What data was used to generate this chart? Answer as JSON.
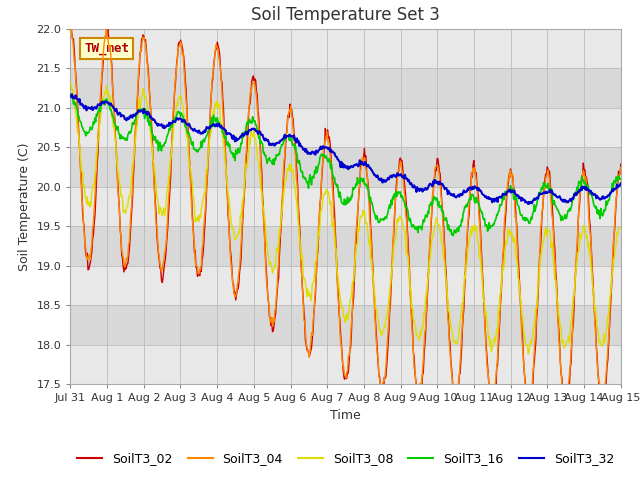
{
  "title": "Soil Temperature Set 3",
  "xlabel": "Time",
  "ylabel": "Soil Temperature (C)",
  "ylim": [
    17.5,
    22.0
  ],
  "series_names": [
    "SoilT3_02",
    "SoilT3_04",
    "SoilT3_08",
    "SoilT3_16",
    "SoilT3_32"
  ],
  "series_colors": [
    "#cc0000",
    "#ff8800",
    "#dddd00",
    "#00cc00",
    "#0000cc"
  ],
  "annotation_text": "TW_met",
  "tick_labels": [
    "Jul 31",
    "Aug 1",
    "Aug 2",
    "Aug 3",
    "Aug 4",
    "Aug 5",
    "Aug 6",
    "Aug 7",
    "Aug 8",
    "Aug 9",
    "Aug 10",
    "Aug 11",
    "Aug 12",
    "Aug 13",
    "Aug 14",
    "Aug 15"
  ],
  "band_colors": [
    "#e8e8e8",
    "#d8d8d8"
  ],
  "grid_line_color": "#c0c0c0",
  "title_fontsize": 12,
  "label_fontsize": 9,
  "tick_fontsize": 8,
  "legend_fontsize": 9,
  "n_days": 15,
  "n_pts_per_day": 48
}
